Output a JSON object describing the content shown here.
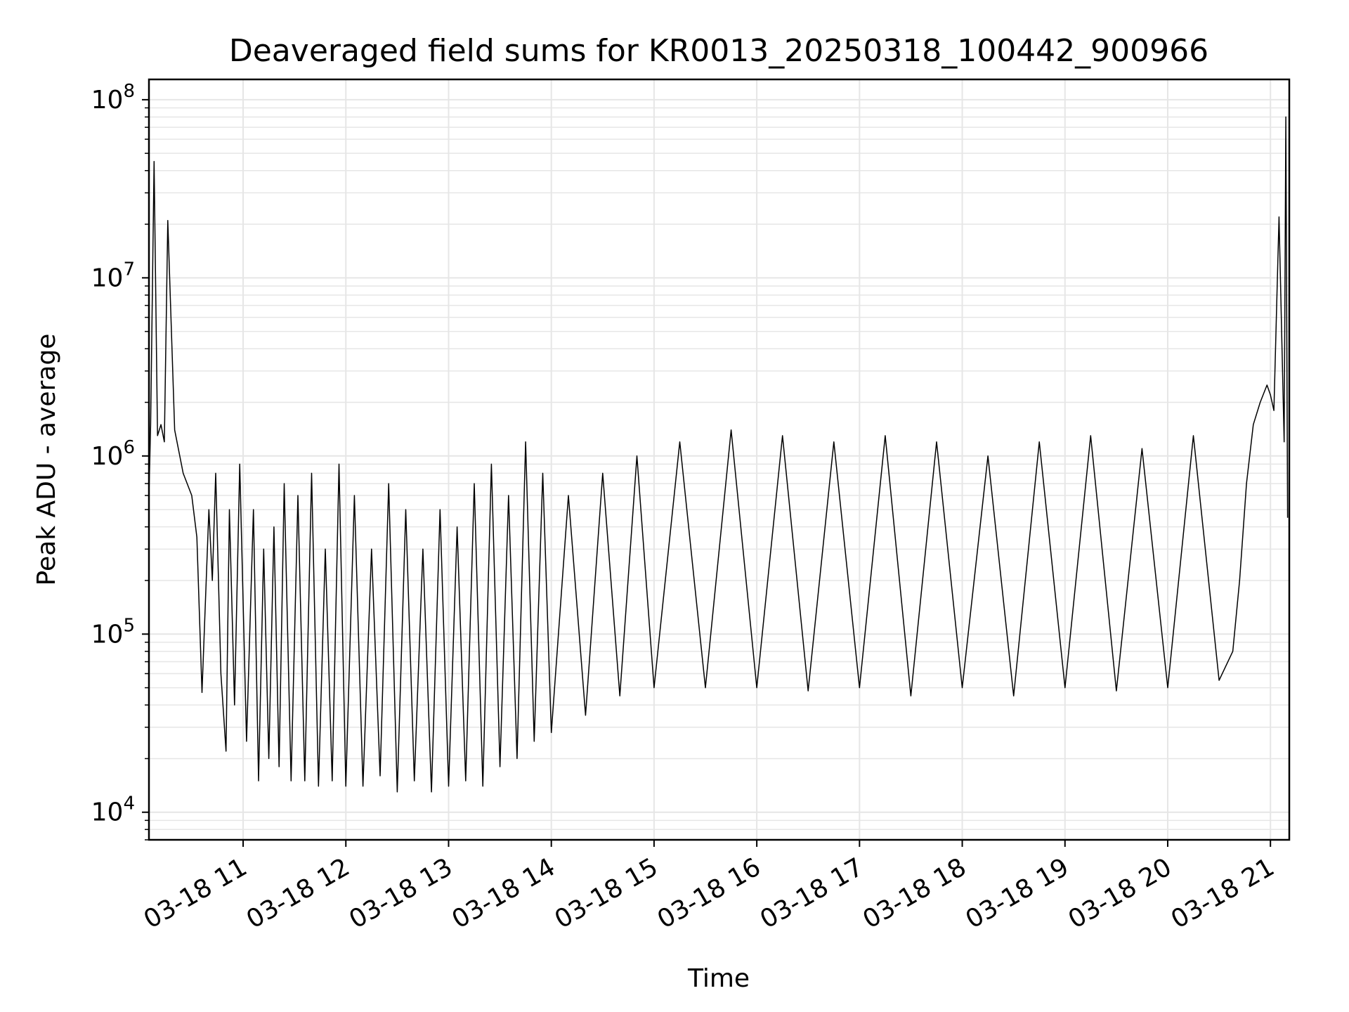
{
  "chart_data": {
    "type": "line",
    "title": "Deaveraged field sums for KR0013_20250318_100442_900966",
    "xlabel": "Time",
    "ylabel": "Peak ADU - average",
    "x_axis": {
      "kind": "time",
      "xlim": [
        "2025-03-18 10:05",
        "2025-03-18 21:11"
      ],
      "ticks": [
        {
          "t": "2025-03-18 11:00",
          "label": "03-18 11"
        },
        {
          "t": "2025-03-18 12:00",
          "label": "03-18 12"
        },
        {
          "t": "2025-03-18 13:00",
          "label": "03-18 13"
        },
        {
          "t": "2025-03-18 14:00",
          "label": "03-18 14"
        },
        {
          "t": "2025-03-18 15:00",
          "label": "03-18 15"
        },
        {
          "t": "2025-03-18 16:00",
          "label": "03-18 16"
        },
        {
          "t": "2025-03-18 17:00",
          "label": "03-18 17"
        },
        {
          "t": "2025-03-18 18:00",
          "label": "03-18 18"
        },
        {
          "t": "2025-03-18 19:00",
          "label": "03-18 19"
        },
        {
          "t": "2025-03-18 20:00",
          "label": "03-18 20"
        },
        {
          "t": "2025-03-18 21:00",
          "label": "03-18 21"
        }
      ],
      "tick_label_rotation_deg": 30
    },
    "y_axis": {
      "scale": "log",
      "ylim": [
        7000,
        130000000
      ],
      "ticks": [
        {
          "value": 10000,
          "base": "10",
          "exp": "4"
        },
        {
          "value": 100000,
          "base": "10",
          "exp": "5"
        },
        {
          "value": 1000000,
          "base": "10",
          "exp": "6"
        },
        {
          "value": 10000000,
          "base": "10",
          "exp": "7"
        },
        {
          "value": 100000000,
          "base": "10",
          "exp": "8"
        }
      ]
    },
    "grid": {
      "major": true,
      "minor_y": true,
      "color": "#e6e6e6"
    },
    "line_color": "#000000",
    "series": [
      {
        "x": [
          "2025-03-18 10:05",
          "2025-03-18 10:06",
          "2025-03-18 10:08",
          "2025-03-18 10:10",
          "2025-03-18 10:12",
          "2025-03-18 10:14",
          "2025-03-18 10:16",
          "2025-03-18 10:20",
          "2025-03-18 10:25",
          "2025-03-18 10:30",
          "2025-03-18 10:33",
          "2025-03-18 10:36",
          "2025-03-18 10:40",
          "2025-03-18 10:42",
          "2025-03-18 10:44",
          "2025-03-18 10:47",
          "2025-03-18 10:50",
          "2025-03-18 10:52",
          "2025-03-18 10:55",
          "2025-03-18 10:58",
          "2025-03-18 11:02",
          "2025-03-18 11:06",
          "2025-03-18 11:09",
          "2025-03-18 11:12",
          "2025-03-18 11:15",
          "2025-03-18 11:18",
          "2025-03-18 11:21",
          "2025-03-18 11:24",
          "2025-03-18 11:28",
          "2025-03-18 11:32",
          "2025-03-18 11:36",
          "2025-03-18 11:40",
          "2025-03-18 11:44",
          "2025-03-18 11:48",
          "2025-03-18 11:52",
          "2025-03-18 11:56",
          "2025-03-18 12:00",
          "2025-03-18 12:05",
          "2025-03-18 12:10",
          "2025-03-18 12:15",
          "2025-03-18 12:20",
          "2025-03-18 12:25",
          "2025-03-18 12:30",
          "2025-03-18 12:35",
          "2025-03-18 12:40",
          "2025-03-18 12:45",
          "2025-03-18 12:50",
          "2025-03-18 12:55",
          "2025-03-18 13:00",
          "2025-03-18 13:05",
          "2025-03-18 13:10",
          "2025-03-18 13:15",
          "2025-03-18 13:20",
          "2025-03-18 13:25",
          "2025-03-18 13:30",
          "2025-03-18 13:35",
          "2025-03-18 13:40",
          "2025-03-18 13:45",
          "2025-03-18 13:50",
          "2025-03-18 13:55",
          "2025-03-18 14:00",
          "2025-03-18 14:10",
          "2025-03-18 14:20",
          "2025-03-18 14:30",
          "2025-03-18 14:40",
          "2025-03-18 14:50",
          "2025-03-18 15:00",
          "2025-03-18 15:15",
          "2025-03-18 15:30",
          "2025-03-18 15:45",
          "2025-03-18 16:00",
          "2025-03-18 16:15",
          "2025-03-18 16:30",
          "2025-03-18 16:45",
          "2025-03-18 17:00",
          "2025-03-18 17:15",
          "2025-03-18 17:30",
          "2025-03-18 17:45",
          "2025-03-18 18:00",
          "2025-03-18 18:15",
          "2025-03-18 18:30",
          "2025-03-18 18:45",
          "2025-03-18 19:00",
          "2025-03-18 19:15",
          "2025-03-18 19:30",
          "2025-03-18 19:45",
          "2025-03-18 20:00",
          "2025-03-18 20:15",
          "2025-03-18 20:30",
          "2025-03-18 20:38",
          "2025-03-18 20:42",
          "2025-03-18 20:46",
          "2025-03-18 20:50",
          "2025-03-18 20:54",
          "2025-03-18 20:58",
          "2025-03-18 21:00",
          "2025-03-18 21:02",
          "2025-03-18 21:05",
          "2025-03-18 21:08",
          "2025-03-18 21:09",
          "2025-03-18 21:10"
        ],
        "y": [
          600000,
          1500000,
          45000000,
          1300000,
          1500000,
          1200000,
          21000000,
          1400000,
          800000,
          600000,
          350000,
          47000,
          500000,
          200000,
          800000,
          60000,
          22000,
          500000,
          40000,
          900000,
          25000,
          500000,
          15000,
          300000,
          20000,
          400000,
          18000,
          700000,
          15000,
          600000,
          15000,
          800000,
          14000,
          300000,
          15000,
          900000,
          14000,
          600000,
          14000,
          300000,
          16000,
          700000,
          13000,
          500000,
          15000,
          300000,
          13000,
          500000,
          14000,
          400000,
          15000,
          700000,
          14000,
          900000,
          18000,
          600000,
          20000,
          1200000,
          25000,
          800000,
          28000,
          600000,
          35000,
          800000,
          45000,
          1000000,
          50000,
          1200000,
          50000,
          1400000,
          50000,
          1300000,
          48000,
          1200000,
          50000,
          1300000,
          45000,
          1200000,
          50000,
          1000000,
          45000,
          1200000,
          50000,
          1300000,
          48000,
          1100000,
          50000,
          1300000,
          55000,
          80000,
          200000,
          700000,
          1500000,
          2000000,
          2500000,
          2200000,
          1800000,
          22000000,
          1200000,
          80000000,
          450000
        ]
      }
    ]
  }
}
